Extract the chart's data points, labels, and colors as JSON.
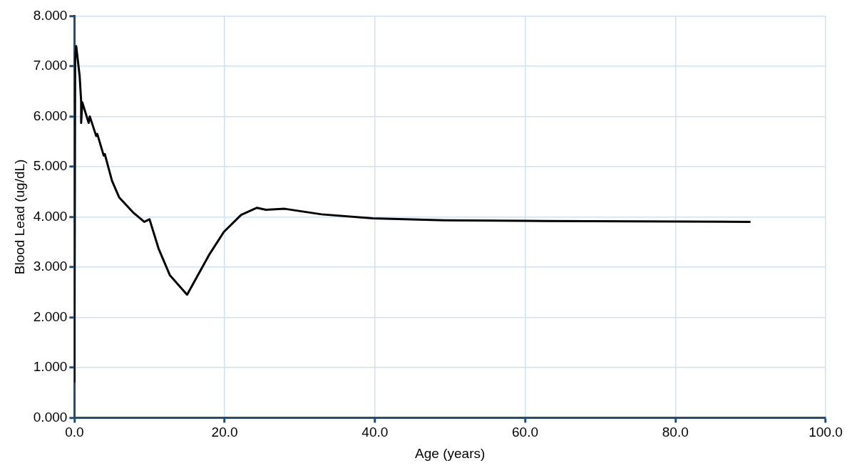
{
  "chart_data": {
    "type": "line",
    "xlabel": "Age (years)",
    "ylabel": "Blood Lead (ug/dL)",
    "series": [
      {
        "color": "#000000",
        "x": [
          0.0,
          0.1,
          0.24,
          0.7,
          0.9,
          0.9,
          1.05,
          1.9,
          2.05,
          2.9,
          3.05,
          3.9,
          4.05,
          5.0,
          5.95,
          7.8,
          9.3,
          10.0,
          11.2,
          12.7,
          15.0,
          18.0,
          19.9,
          22.2,
          24.3,
          25.5,
          28.0,
          32.9,
          39.7,
          49.2,
          60.0,
          75.0,
          90.0
        ],
        "values": [
          0.7,
          7.14,
          7.4,
          6.8,
          6.3,
          5.87,
          6.28,
          5.87,
          6.0,
          5.61,
          5.65,
          5.22,
          5.25,
          4.72,
          4.39,
          4.09,
          3.9,
          3.95,
          3.37,
          2.84,
          2.45,
          3.26,
          3.7,
          4.04,
          4.18,
          4.14,
          4.16,
          4.05,
          3.97,
          3.93,
          3.92,
          3.91,
          3.9
        ]
      }
    ],
    "xlim": [
      0,
      100
    ],
    "xticks": [
      {
        "value": 0,
        "label": "0.0"
      },
      {
        "value": 20,
        "label": "20.0"
      },
      {
        "value": 40,
        "label": "40.0"
      },
      {
        "value": 60,
        "label": "60.0"
      },
      {
        "value": 80,
        "label": "80.0"
      },
      {
        "value": 100,
        "label": "100.0"
      }
    ],
    "ylim": [
      0,
      8
    ],
    "yticks": [
      {
        "value": 0,
        "label": "0.000"
      },
      {
        "value": 1,
        "label": "1.000"
      },
      {
        "value": 2,
        "label": "2.000"
      },
      {
        "value": 3,
        "label": "3.000"
      },
      {
        "value": 4,
        "label": "4.000"
      },
      {
        "value": 5,
        "label": "5.000"
      },
      {
        "value": 6,
        "label": "6.000"
      },
      {
        "value": 7,
        "label": "7.000"
      },
      {
        "value": 8,
        "label": "8.000"
      }
    ],
    "grid": true,
    "legend": false,
    "marker": "none",
    "line_style": "solid"
  }
}
